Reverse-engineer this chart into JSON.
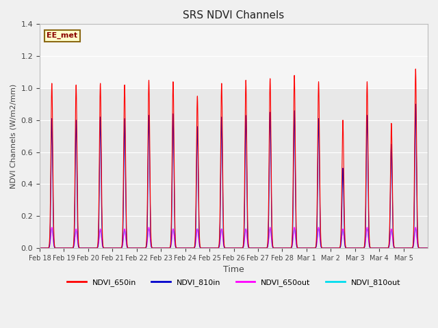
{
  "title": "SRS NDVI Channels",
  "xlabel": "Time",
  "ylabel": "NDVI Channels (W/m2/mm)",
  "ylim": [
    0,
    1.4
  ],
  "background_color": "#f0f0f0",
  "plot_bg_color": "#e8e8e8",
  "grid_color": "white",
  "annotation_text": "EE_met",
  "annotation_bg": "#ffffcc",
  "annotation_border": "#8B6914",
  "series": {
    "NDVI_650in": {
      "color": "#ff0000",
      "lw": 0.8
    },
    "NDVI_810in": {
      "color": "#0000cc",
      "lw": 0.8
    },
    "NDVI_650out": {
      "color": "#ff00ff",
      "lw": 0.8
    },
    "NDVI_810out": {
      "color": "#00ddee",
      "lw": 0.8
    }
  },
  "xtick_labels": [
    "Feb 18",
    "Feb 19",
    "Feb 20",
    "Feb 21",
    "Feb 22",
    "Feb 23",
    "Feb 24",
    "Feb 25",
    "Feb 26",
    "Feb 27",
    "Feb 28",
    "Mar 1",
    "Mar 2",
    "Mar 3",
    "Mar 4",
    "Mar 5"
  ],
  "num_days": 16,
  "peaks_650in": [
    1.03,
    1.02,
    1.03,
    1.02,
    1.05,
    1.04,
    0.95,
    1.03,
    1.05,
    1.06,
    1.08,
    1.04,
    0.8,
    1.04,
    0.78,
    1.12
  ],
  "peaks_810in": [
    0.81,
    0.8,
    0.82,
    0.81,
    0.83,
    0.84,
    0.76,
    0.82,
    0.83,
    0.85,
    0.86,
    0.81,
    0.5,
    0.83,
    0.65,
    0.9
  ],
  "peaks_650out": [
    0.13,
    0.12,
    0.12,
    0.12,
    0.13,
    0.12,
    0.12,
    0.12,
    0.12,
    0.13,
    0.13,
    0.13,
    0.12,
    0.13,
    0.12,
    0.13
  ],
  "peaks_810out": [
    0.12,
    0.11,
    0.11,
    0.11,
    0.12,
    0.12,
    0.12,
    0.12,
    0.12,
    0.12,
    0.12,
    0.12,
    0.11,
    0.12,
    0.11,
    0.12
  ],
  "yticks": [
    0.0,
    0.2,
    0.4,
    0.6,
    0.8,
    1.0,
    1.2,
    1.4
  ],
  "legend_labels": [
    "NDVI_650in",
    "NDVI_810in",
    "NDVI_650out",
    "NDVI_810out"
  ]
}
